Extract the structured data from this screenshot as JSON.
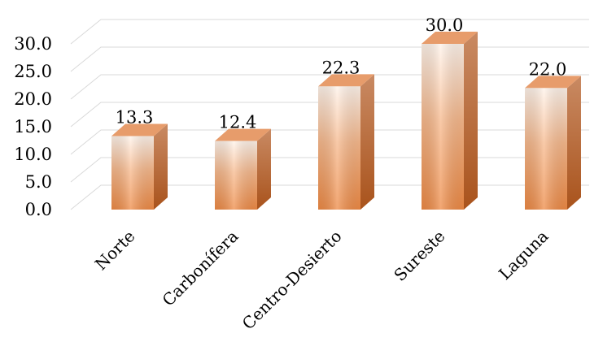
{
  "chart_data": {
    "type": "bar",
    "style": "3d-column",
    "categories": [
      "Norte",
      "Carbonífera",
      "Centro-Desierto",
      "Sureste",
      "Laguna"
    ],
    "values": [
      13.3,
      12.4,
      22.3,
      30.0,
      22.0
    ],
    "data_labels": [
      "13.3",
      "12.4",
      "22.3",
      "30.0",
      "22.0"
    ],
    "y_ticks": [
      "0.0",
      "5.0",
      "10.0",
      "15.0",
      "20.0",
      "25.0",
      "30.0"
    ],
    "ylim": [
      0,
      30
    ],
    "grid": true,
    "legend": "none",
    "colors": {
      "bar_light": "#fff3ea",
      "bar_mid": "#f7b98d",
      "bar_dark": "#ee8a45",
      "side": "#b8602a",
      "top": "#e79c6b",
      "grid": "#d9d9d9"
    }
  }
}
